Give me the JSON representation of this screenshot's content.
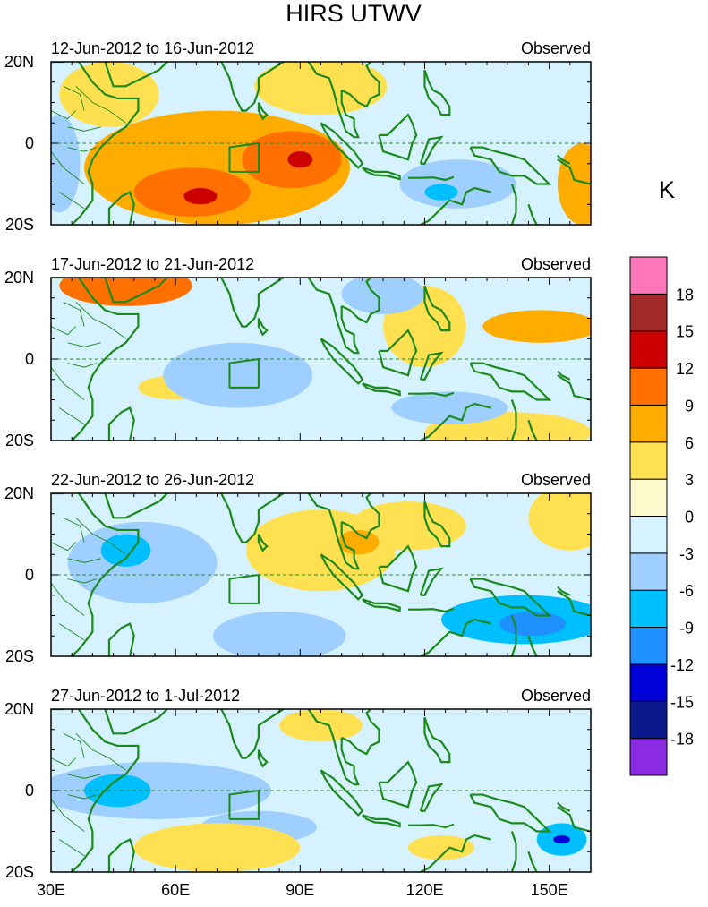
{
  "chart_data": {
    "type": "heatmap",
    "title": "HIRS UTWV",
    "units": "K",
    "x_axis": {
      "range": [
        30,
        160
      ],
      "ticks": [
        30,
        60,
        90,
        120,
        150
      ],
      "tick_labels": [
        "30E",
        "60E",
        "90E",
        "120E",
        "150E"
      ]
    },
    "y_axis": {
      "range": [
        -20,
        20
      ],
      "ticks": [
        20,
        0,
        -20
      ],
      "tick_labels": [
        "20N",
        "0",
        "20S"
      ]
    },
    "colorbar": {
      "levels": [
        -18,
        -15,
        -12,
        -9,
        -6,
        -3,
        0,
        3,
        6,
        9,
        12,
        15,
        18
      ],
      "level_labels": [
        "-18",
        "-15",
        "-12",
        "-9",
        "-6",
        "-3",
        "0",
        "3",
        "6",
        "9",
        "12",
        "15",
        "18"
      ],
      "colors": [
        "#8a2be2",
        "#0a1a8c",
        "#0000d8",
        "#1e90ff",
        "#00bfff",
        "#9fcfff",
        "#d6f2ff",
        "#fffacd",
        "#ffe050",
        "#ffac00",
        "#ff7000",
        "#cc0000",
        "#a52a2a",
        "#ff77bb"
      ]
    },
    "panels": [
      {
        "period": "12-Jun-2012 to 16-Jun-2012",
        "label": "Observed",
        "blobs": [
          {
            "lon": 70,
            "lat": -6,
            "rx": 32,
            "ry": 14,
            "v": 7
          },
          {
            "lon": 88,
            "lat": -4,
            "rx": 12,
            "ry": 7,
            "v": 11
          },
          {
            "lon": 64,
            "lat": -12,
            "rx": 14,
            "ry": 6,
            "v": 10
          },
          {
            "lon": 90,
            "lat": -4,
            "rx": 3,
            "ry": 2,
            "v": 13
          },
          {
            "lon": 66,
            "lat": -13,
            "rx": 4,
            "ry": 2,
            "v": 13
          },
          {
            "lon": 44,
            "lat": 12,
            "rx": 12,
            "ry": 8,
            "v": 4
          },
          {
            "lon": 95,
            "lat": 14,
            "rx": 16,
            "ry": 7,
            "v": 3
          },
          {
            "lon": 158,
            "lat": -10,
            "rx": 6,
            "ry": 10,
            "v": 7
          },
          {
            "lon": 142,
            "lat": 9,
            "rx": 20,
            "ry": 8,
            "v": -3
          },
          {
            "lon": 128,
            "lat": -10,
            "rx": 14,
            "ry": 6,
            "v": -6
          },
          {
            "lon": 124,
            "lat": -12,
            "rx": 4,
            "ry": 2,
            "v": -9
          },
          {
            "lon": 108,
            "lat": -15,
            "rx": 14,
            "ry": 5,
            "v": -3
          },
          {
            "lon": 32,
            "lat": -5,
            "rx": 5,
            "ry": 12,
            "v": -4
          }
        ]
      },
      {
        "period": "17-Jun-2012 to 21-Jun-2012",
        "label": "Observed",
        "blobs": [
          {
            "lon": 48,
            "lat": 18,
            "rx": 16,
            "ry": 5,
            "v": 9
          },
          {
            "lon": 120,
            "lat": 8,
            "rx": 10,
            "ry": 10,
            "v": 5
          },
          {
            "lon": 148,
            "lat": 8,
            "rx": 14,
            "ry": 4,
            "v": 6
          },
          {
            "lon": 140,
            "lat": -18,
            "rx": 20,
            "ry": 5,
            "v": 4
          },
          {
            "lon": 60,
            "lat": -7,
            "rx": 9,
            "ry": 3,
            "v": 4
          },
          {
            "lon": 75,
            "lat": -4,
            "rx": 18,
            "ry": 8,
            "v": -4
          },
          {
            "lon": 110,
            "lat": 16,
            "rx": 10,
            "ry": 5,
            "v": -6
          },
          {
            "lon": 126,
            "lat": -12,
            "rx": 14,
            "ry": 4,
            "v": -4
          },
          {
            "lon": 40,
            "lat": 4,
            "rx": 9,
            "ry": 6,
            "v": -3
          }
        ]
      },
      {
        "period": "22-Jun-2012 to 26-Jun-2012",
        "label": "Observed",
        "blobs": [
          {
            "lon": 52,
            "lat": 3,
            "rx": 18,
            "ry": 10,
            "v": -6
          },
          {
            "lon": 48,
            "lat": 6,
            "rx": 6,
            "ry": 4,
            "v": -9
          },
          {
            "lon": 95,
            "lat": 6,
            "rx": 18,
            "ry": 10,
            "v": 4
          },
          {
            "lon": 104,
            "lat": 8,
            "rx": 5,
            "ry": 3,
            "v": 8
          },
          {
            "lon": 116,
            "lat": 12,
            "rx": 14,
            "ry": 6,
            "v": 3
          },
          {
            "lon": 144,
            "lat": -11,
            "rx": 20,
            "ry": 6,
            "v": -7
          },
          {
            "lon": 146,
            "lat": -12,
            "rx": 8,
            "ry": 3,
            "v": -10
          },
          {
            "lon": 85,
            "lat": -15,
            "rx": 16,
            "ry": 6,
            "v": -5
          },
          {
            "lon": 155,
            "lat": 14,
            "rx": 10,
            "ry": 8,
            "v": 3
          }
        ]
      },
      {
        "period": "27-Jun-2012 to 1-Jul-2012",
        "label": "Observed",
        "blobs": [
          {
            "lon": 55,
            "lat": 0,
            "rx": 28,
            "ry": 7,
            "v": -5
          },
          {
            "lon": 46,
            "lat": 0,
            "rx": 8,
            "ry": 4,
            "v": -8
          },
          {
            "lon": 80,
            "lat": -9,
            "rx": 14,
            "ry": 4,
            "v": -4
          },
          {
            "lon": 70,
            "lat": -14,
            "rx": 20,
            "ry": 6,
            "v": 4
          },
          {
            "lon": 153,
            "lat": -12,
            "rx": 6,
            "ry": 4,
            "v": -9
          },
          {
            "lon": 153,
            "lat": -12,
            "rx": 2,
            "ry": 1,
            "v": -13
          },
          {
            "lon": 124,
            "lat": -14,
            "rx": 8,
            "ry": 3,
            "v": 4
          },
          {
            "lon": 140,
            "lat": 8,
            "rx": 16,
            "ry": 6,
            "v": -3
          },
          {
            "lon": 95,
            "lat": 16,
            "rx": 10,
            "ry": 4,
            "v": 4
          }
        ]
      }
    ]
  }
}
